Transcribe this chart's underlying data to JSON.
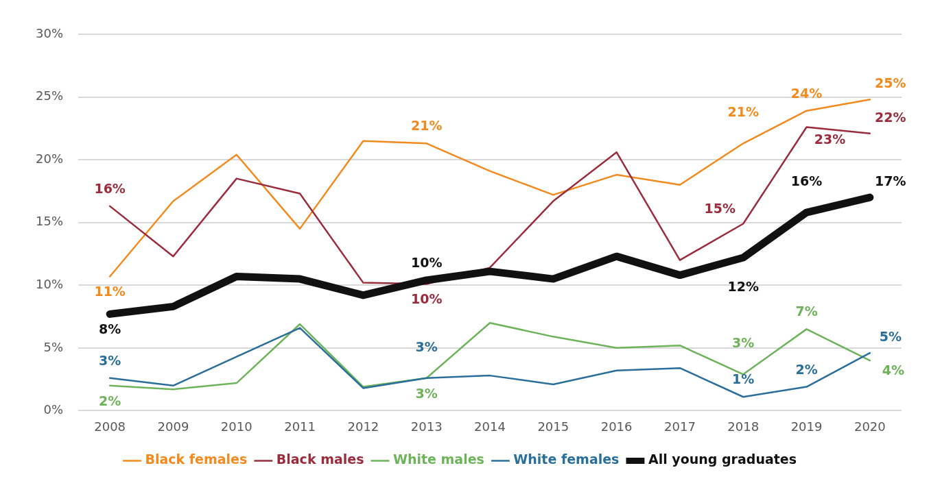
{
  "chart_data": {
    "type": "line",
    "categories": [
      "2008",
      "2009",
      "2010",
      "2011",
      "2012",
      "2013",
      "2014",
      "2015",
      "2016",
      "2017",
      "2018",
      "2019",
      "2020"
    ],
    "series": [
      {
        "name": "Black females",
        "color": "#f28a1e",
        "values": [
          10.7,
          16.7,
          20.4,
          14.5,
          21.5,
          21.3,
          19.1,
          17.2,
          18.8,
          18.0,
          21.3,
          23.9,
          24.8
        ],
        "value_labels": [
          "11%",
          null,
          null,
          null,
          null,
          "21%",
          null,
          null,
          null,
          null,
          "21%",
          "24%",
          "25%"
        ]
      },
      {
        "name": "Black males",
        "color": "#9b2c3c",
        "values": [
          16.3,
          12.3,
          18.5,
          17.3,
          10.2,
          10.1,
          11.4,
          16.7,
          20.6,
          12.0,
          14.9,
          22.6,
          22.1
        ],
        "value_labels": [
          "16%",
          null,
          null,
          null,
          null,
          "10%",
          null,
          null,
          null,
          null,
          "15%",
          "23%",
          "22%"
        ]
      },
      {
        "name": "White males",
        "color": "#6db35a",
        "values": [
          2.0,
          1.7,
          2.2,
          6.9,
          1.9,
          2.6,
          7.0,
          5.9,
          5.0,
          5.2,
          2.9,
          6.5,
          4.0
        ],
        "value_labels": [
          "2%",
          null,
          null,
          null,
          null,
          "3%",
          null,
          null,
          null,
          null,
          "3%",
          "7%",
          "4%"
        ]
      },
      {
        "name": "White females",
        "color": "#2a6f9b",
        "values": [
          2.6,
          2.0,
          4.3,
          6.6,
          1.8,
          2.6,
          2.8,
          2.1,
          3.2,
          3.4,
          1.1,
          1.9,
          4.6
        ],
        "value_labels": [
          "3%",
          null,
          null,
          null,
          null,
          "3%",
          null,
          null,
          null,
          null,
          "1%",
          "2%",
          "5%"
        ]
      },
      {
        "name": "All young graduates",
        "color": "#111111",
        "values": [
          7.7,
          8.3,
          10.7,
          10.5,
          9.2,
          10.4,
          11.1,
          10.5,
          12.3,
          10.8,
          12.2,
          15.8,
          17.0
        ],
        "value_labels": [
          "8%",
          null,
          null,
          null,
          null,
          "10%",
          null,
          null,
          null,
          null,
          "12%",
          "16%",
          "17%"
        ]
      }
    ],
    "ylim": [
      0,
      30
    ],
    "yticks": [
      {
        "value": 0,
        "label": "0%"
      },
      {
        "value": 5,
        "label": "5%"
      },
      {
        "value": 10,
        "label": "10%"
      },
      {
        "value": 15,
        "label": "15%"
      },
      {
        "value": 20,
        "label": "20%"
      },
      {
        "value": 25,
        "label": "25%"
      },
      {
        "value": 30,
        "label": "30%"
      }
    ],
    "grid": "y",
    "legend": "bottom",
    "marker": "none",
    "line_style": "solid"
  }
}
